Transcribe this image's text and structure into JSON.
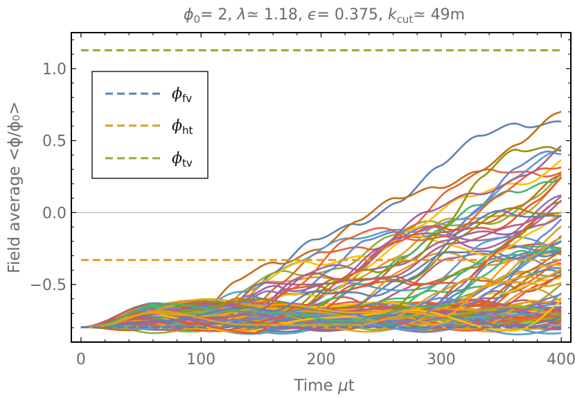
{
  "chart_data": {
    "type": "line",
    "title": {
      "phi0_sym": "ϕ",
      "phi0_sub": "0",
      "phi0_rest": "= 2, ",
      "lambda_sym": "λ",
      "lambda_rest": "≃ 1.18, ",
      "eps_sym": "ϵ",
      "eps_rest": "= 0.375, ",
      "k_sym": "k",
      "k_sub": "cut",
      "k_rest": "≃ 49m"
    },
    "xlabel": {
      "pre": "Time ",
      "mu": "μ",
      "post": "t"
    },
    "ylabel": "Field average <ϕ/ϕ₀>",
    "xlim": [
      -8,
      408
    ],
    "ylim": [
      -0.9,
      1.25
    ],
    "xticks": [
      0,
      100,
      200,
      300,
      400
    ],
    "xtick_labels": [
      "0",
      "100",
      "200",
      "300",
      "400"
    ],
    "yticks": [
      -0.5,
      0.0,
      0.5,
      1.0
    ],
    "ytick_labels": [
      "−0.5",
      "0.0",
      "0.5",
      "1.0"
    ],
    "reference_lines": [
      {
        "name": "ϕ",
        "sub": "fv",
        "value": -0.797,
        "color": "#5e81b5"
      },
      {
        "name": "ϕ",
        "sub": "ht",
        "value": -0.33,
        "color": "#e19c24"
      },
      {
        "name": "ϕ",
        "sub": "tv",
        "value": 1.127,
        "color": "#8fb032"
      }
    ],
    "zero_line": 0.0,
    "legend_position": "top-left",
    "ensemble": {
      "description_count": 110,
      "t_end": 400,
      "start_value": -0.797,
      "false_vacuum_band": [
        -0.82,
        -0.55
      ],
      "true_vacuum_value": 1.127,
      "colors": [
        "#5e81b5",
        "#e19c24",
        "#8fb032",
        "#eb6235",
        "#8778b3",
        "#c56e1a",
        "#5d9ec7",
        "#ffbf00",
        "#a5609d",
        "#929600",
        "#e95536",
        "#6685d9",
        "#f89f13",
        "#bc5b80",
        "#47b66d"
      ]
    }
  }
}
